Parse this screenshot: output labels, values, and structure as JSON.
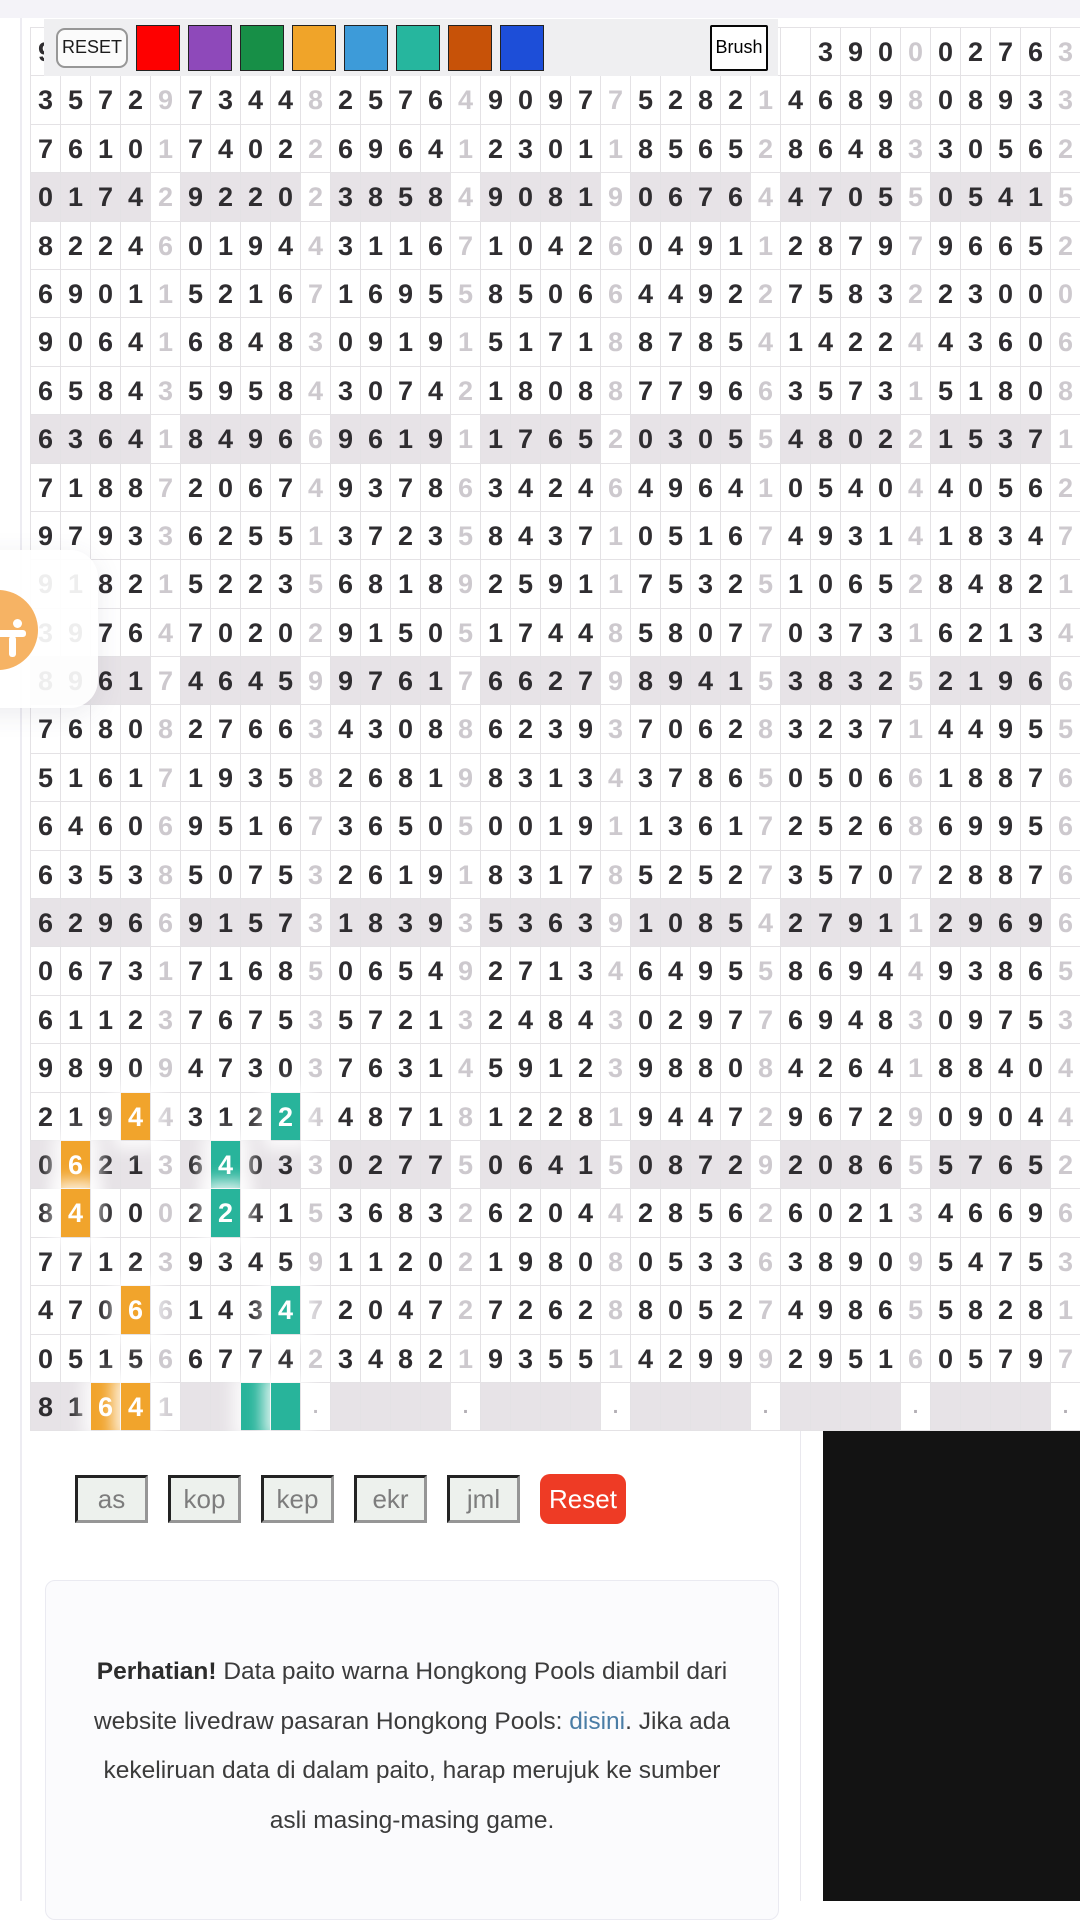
{
  "page": {
    "background": "#ffffff",
    "top_band_color": "#f4f3f8"
  },
  "toolbar": {
    "reset_label": "RESET",
    "brush_label": "Brush",
    "swatches": [
      {
        "name": "red",
        "color": "#fe0000"
      },
      {
        "name": "purple",
        "color": "#8e49ba"
      },
      {
        "name": "green",
        "color": "#178f47"
      },
      {
        "name": "orange",
        "color": "#f0a429"
      },
      {
        "name": "light-blue",
        "color": "#3d9bd9"
      },
      {
        "name": "teal",
        "color": "#26b69e"
      },
      {
        "name": "dark-orange",
        "color": "#c75208"
      },
      {
        "name": "blue",
        "color": "#1d4ed8"
      }
    ]
  },
  "grid": {
    "columns": 35,
    "faded_every": 5,
    "shaded_rows": [
      4,
      9,
      14,
      19,
      24,
      29
    ],
    "legend": "each row is 35 chars: digit, space = empty cell, . = dot placeholder",
    "rows": [
      "9                         3900027639",
      "35729734482576490977528214689808933",
      "76101740226964123011856528648330562",
      "01742922023858490819067644705505415",
      "82246019443116710426049112879796652",
      "69011521671695585066449227583223000",
      "90641684830919151718878541422443606",
      "65843595843074218088779663573151808",
      "63641849669619117652030554802215371",
      "71887206749378634246496410540440562",
      "97933625513723584371051674931418347",
      "91821522356818925911753251065284821",
      "39764702029150517448580770373162134",
      "89617464599761766279894153832521966",
      "76808276634308862393706283237144955",
      "51617193582681983134378650506618876",
      "64606951673650500191136172526869956",
      "63538507532619183178525273570728876",
      "62966915731839353639108542791129696",
      "06731716850654927134649558694493865",
      "61123767535721324843029776948309753",
      "98909473037631459123988084264188404",
      "21944312244871812281944729672909044",
      "06213640330277506415087292086557652",
      "84000224153683262044285626021346696",
      "77123934591120219808053363890954753",
      "47066143472047272628805274986558281",
      "05156677423482193551429992951605797",
      "81641    .    .    .    .    .    ."
    ],
    "highlights": [
      {
        "row": 23,
        "col": 4,
        "color": "orange"
      },
      {
        "row": 23,
        "col": 9,
        "color": "teal"
      },
      {
        "row": 24,
        "col": 2,
        "color": "orange"
      },
      {
        "row": 24,
        "col": 7,
        "color": "teal"
      },
      {
        "row": 25,
        "col": 2,
        "color": "orange"
      },
      {
        "row": 25,
        "col": 7,
        "color": "teal"
      },
      {
        "row": 27,
        "col": 4,
        "color": "orange"
      },
      {
        "row": 27,
        "col": 9,
        "color": "teal"
      },
      {
        "row": 29,
        "col": 3,
        "color": "orange"
      },
      {
        "row": 29,
        "col": 4,
        "color": "orange"
      },
      {
        "row": 29,
        "col": 8,
        "color": "teal"
      },
      {
        "row": 29,
        "col": 9,
        "color": "teal"
      }
    ],
    "highlight_colors": {
      "orange": "#f1a42c",
      "teal": "#28b49b"
    },
    "shade_color": "#e7e3e7",
    "digit_color": "#2f2d30",
    "faded_digit_color": "#cdc9ce"
  },
  "actions": {
    "buttons": [
      "as",
      "kop",
      "kep",
      "ekr",
      "jml"
    ],
    "reset_label": "Reset",
    "reset_color": "#ee3b25"
  },
  "notice": {
    "bold": "Perhatian!",
    "text_before_link": " Data paito warna Hongkong Pools diambil dari website livedraw pasaran Hongkong Pools: ",
    "link": "disini",
    "text_after_link": ". Jika ada kekeliruan data di dalam paito, harap merujuk ke sumber asli masing-masing game.",
    "link_color": "#4a7da6"
  },
  "ad_panel": {
    "color": "#131313"
  }
}
